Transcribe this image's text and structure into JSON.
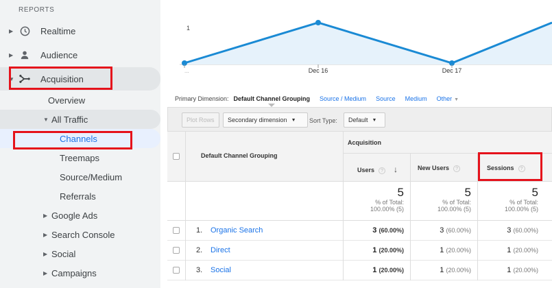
{
  "sidebar": {
    "section_label": "REPORTS",
    "items": [
      {
        "label": "Realtime",
        "icon": "clock-icon"
      },
      {
        "label": "Audience",
        "icon": "person-icon"
      },
      {
        "label": "Acquisition",
        "icon": "acquisition-icon"
      },
      {
        "label": "Overview"
      },
      {
        "label": "All Traffic"
      },
      {
        "label": "Channels"
      },
      {
        "label": "Treemaps"
      },
      {
        "label": "Source/Medium"
      },
      {
        "label": "Referrals"
      },
      {
        "label": "Google Ads"
      },
      {
        "label": "Search Console"
      },
      {
        "label": "Social"
      },
      {
        "label": "Campaigns"
      }
    ]
  },
  "chart_data": {
    "type": "line",
    "x": [
      "...",
      "Dec 16",
      "Dec 17",
      ""
    ],
    "series": [
      {
        "values": [
          0,
          1,
          0,
          1
        ]
      }
    ],
    "ytick": "1",
    "xtick_labels": [
      "...",
      "Dec 16",
      "Dec 17"
    ],
    "line_color": "#1a8ad4",
    "fill_color": "#e6f2fb"
  },
  "dimension_bar": {
    "label": "Primary Dimension:",
    "current": "Default Channel Grouping",
    "links": [
      "Source / Medium",
      "Source",
      "Medium"
    ],
    "other": "Other"
  },
  "toolbar": {
    "plot_rows": "Plot Rows",
    "secondary_dimension": "Secondary dimension",
    "sort_type_label": "Sort Type:",
    "sort_type_value": "Default"
  },
  "table": {
    "col_dimension": "Default Channel Grouping",
    "group_label": "Acquisition",
    "col_users": "Users",
    "col_new_users": "New Users",
    "col_sessions": "Sessions",
    "totals": {
      "users": "5",
      "new_users": "5",
      "sessions": "5",
      "pct_label": "% of Total:",
      "pct_value": "100.00% (5)"
    },
    "rows": [
      {
        "num": "1.",
        "channel": "Organic Search",
        "users": "3",
        "users_pct": "(60.00%)",
        "new_users": "3",
        "new_users_pct": "(60.00%)",
        "sessions": "3",
        "sessions_pct": "(60.00%)"
      },
      {
        "num": "2.",
        "channel": "Direct",
        "users": "1",
        "users_pct": "(20.00%)",
        "new_users": "1",
        "new_users_pct": "(20.00%)",
        "sessions": "1",
        "sessions_pct": "(20.00%)"
      },
      {
        "num": "3.",
        "channel": "Social",
        "users": "1",
        "users_pct": "(20.00%)",
        "new_users": "1",
        "new_users_pct": "(20.00%)",
        "sessions": "1",
        "sessions_pct": "(20.00%)"
      }
    ]
  },
  "colors": {
    "highlight_red": "#e5121b",
    "link_blue": "#1a73e8"
  }
}
